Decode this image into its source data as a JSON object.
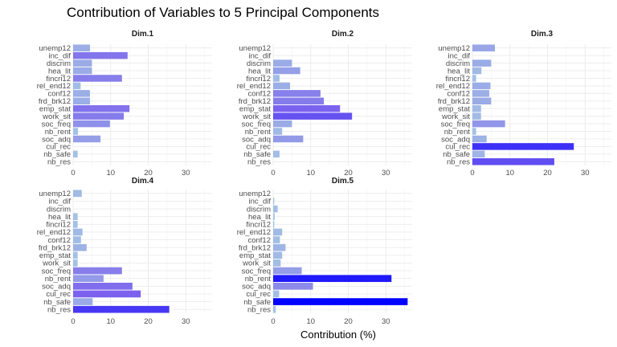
{
  "chart_data": {
    "type": "bar",
    "orientation": "horizontal",
    "title": "Contribution of Variables to 5 Principal Components",
    "xlabel": "Contribution (%)",
    "ylabel": "",
    "xlim": [
      0,
      37
    ],
    "xticks": [
      0,
      10,
      20,
      30
    ],
    "grid": true,
    "categories": [
      "unemp12",
      "inc_dif",
      "discrim",
      "hea_lit",
      "fincri12",
      "rel_end12",
      "conf12",
      "frd_brk12",
      "emp_stat",
      "work_sit",
      "soc_freq",
      "nb_rent",
      "soc_adq",
      "cul_rec",
      "nb_safe",
      "nb_res"
    ],
    "color_scale": {
      "low": "#a6c8e3",
      "mid": "#7b61ee",
      "high": "#0000ff"
    },
    "panels": [
      {
        "name": "Dim.1",
        "values": [
          4.5,
          14.5,
          5.0,
          5.0,
          13.0,
          2.0,
          4.5,
          4.5,
          15.0,
          13.5,
          9.8,
          1.3,
          7.3,
          0.0,
          1.2,
          0.0
        ]
      },
      {
        "name": "Dim.2",
        "values": [
          0.0,
          0.0,
          5.0,
          7.2,
          1.7,
          4.5,
          12.6,
          13.5,
          17.8,
          21.0,
          5.0,
          2.4,
          8.0,
          0.0,
          1.7,
          0.0
        ]
      },
      {
        "name": "Dim.3",
        "values": [
          6.0,
          0.0,
          5.0,
          2.4,
          1.0,
          4.8,
          4.5,
          5.0,
          2.3,
          2.3,
          8.7,
          1.0,
          3.8,
          27.0,
          3.3,
          21.8
        ]
      },
      {
        "name": "Dim.4",
        "values": [
          2.3,
          0.0,
          0.0,
          1.2,
          1.2,
          2.5,
          2.1,
          3.6,
          1.2,
          1.2,
          13.0,
          8.1,
          15.8,
          18.0,
          5.2,
          25.6
        ]
      },
      {
        "name": "Dim.5",
        "values": [
          0.0,
          0.3,
          1.2,
          0.4,
          0.3,
          2.4,
          1.8,
          3.3,
          2.4,
          2.0,
          7.6,
          31.5,
          10.6,
          1.6,
          35.8,
          0.7
        ]
      }
    ]
  }
}
